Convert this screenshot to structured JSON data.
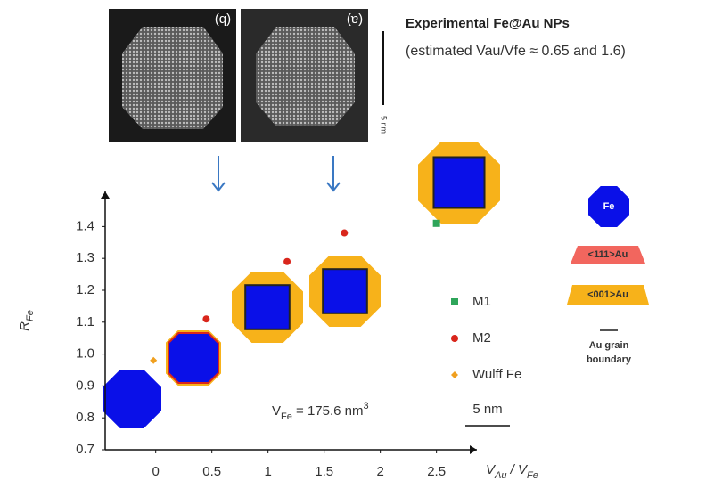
{
  "chart_data": {
    "type": "scatter",
    "header": "Experimental Fe@Au NPs",
    "subheader": "(estimated Vau/Vfe ≈ 0.65 and 1.6)",
    "image_labels": [
      "(b)",
      "(a)"
    ],
    "image_scale": "5 nm",
    "ylabel_parts": [
      {
        "text": "R"
      },
      {
        "text": "Fe",
        "sub": true
      }
    ],
    "xlabel_parts": [
      {
        "text": "V"
      },
      {
        "text": "Au",
        "sub": true
      },
      {
        "text": " / V"
      },
      {
        "text": "Fe",
        "sub": true
      }
    ],
    "annotation_parts": [
      {
        "text": "V"
      },
      {
        "text": "Fe",
        "sub": true
      },
      {
        "text": " = 175.6 nm"
      },
      {
        "text": "3",
        "sup": true
      }
    ],
    "scale_bar": "5 nm",
    "key": {
      "fe": "Fe",
      "au111": "<111>Au",
      "au001": "<001>Au",
      "boundary": [
        "Au grain",
        "boundary"
      ]
    },
    "xlim": [
      -0.45,
      2.86
    ],
    "ylim": [
      0.7,
      1.51
    ],
    "xticks": [
      0,
      0.5,
      1,
      1.5,
      2,
      2.5
    ],
    "yticks": [
      0.7,
      0.8,
      0.9,
      {
        "value": 1,
        "label": "1.0"
      },
      1.1,
      1.2,
      1.3,
      1.4
    ],
    "series": [
      {
        "name": "M1",
        "color": "#2ea55a",
        "marker": "square",
        "x": [
          2.5
        ],
        "values": [
          1.41
        ]
      },
      {
        "name": "M2",
        "color": "#d9261c",
        "marker": "circle",
        "x": [
          0.45,
          1.17,
          1.68
        ],
        "values": [
          1.11,
          1.29,
          1.38
        ]
      },
      {
        "name": "Wulff Fe",
        "color": "#f0a020",
        "marker": "diamond",
        "x": [
          -0.02
        ],
        "values": [
          0.98
        ]
      }
    ]
  }
}
